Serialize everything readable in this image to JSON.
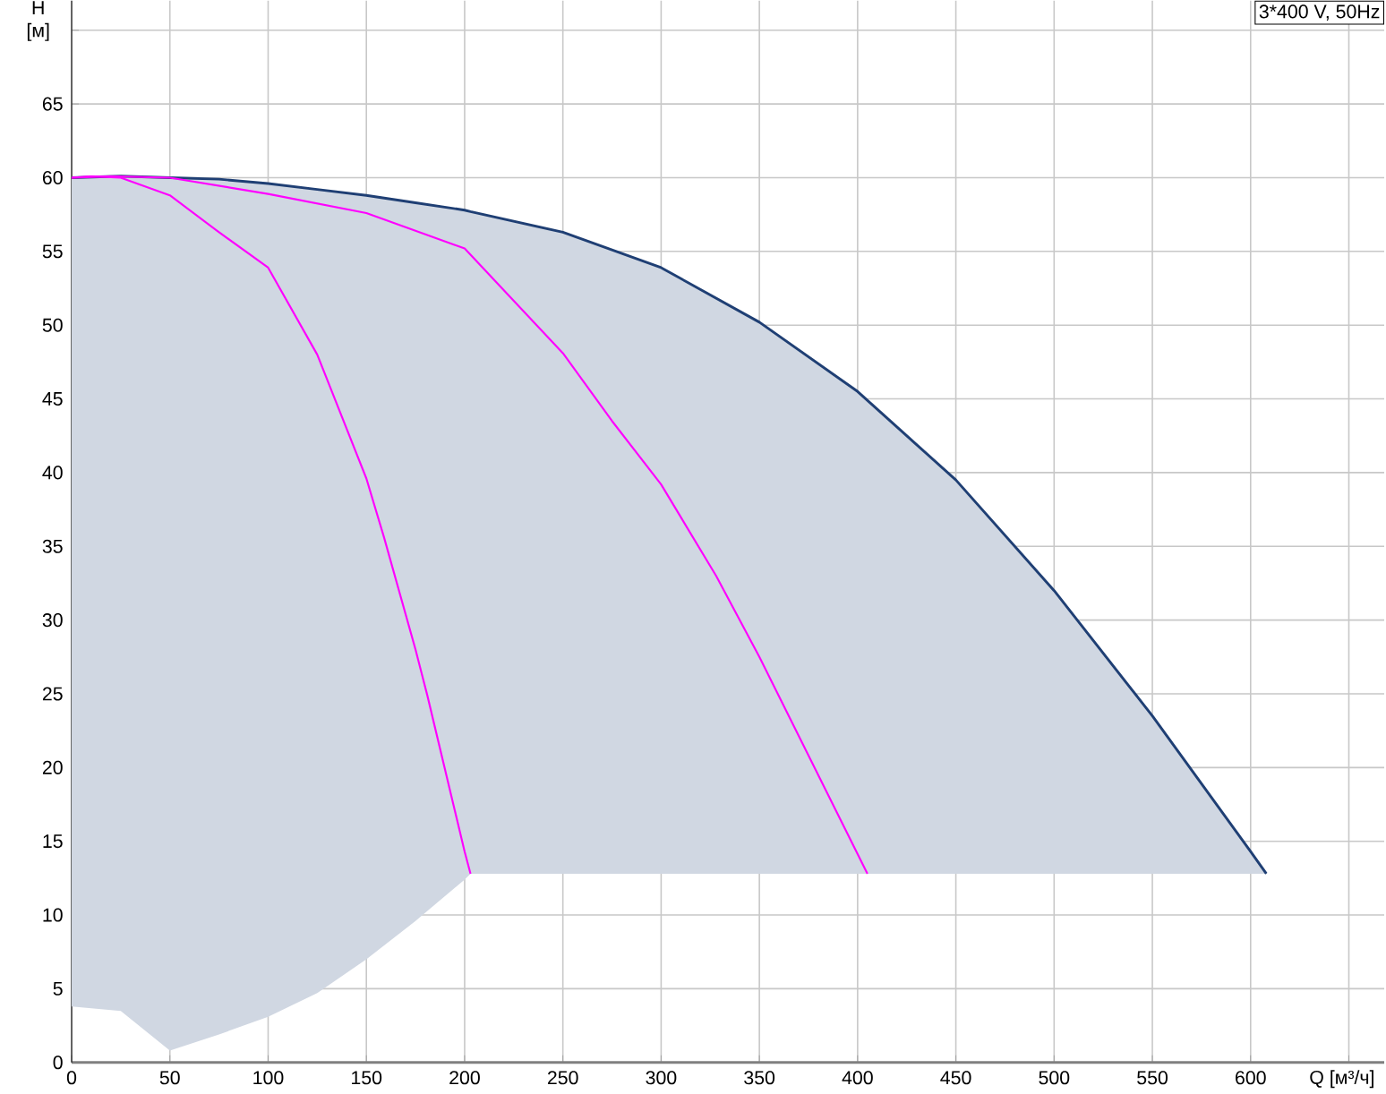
{
  "chart_data": {
    "type": "line",
    "xlabel": "Q [м³/ч]",
    "ylabel": "H [м]",
    "annotations": [
      "3*400 V, 50Hz"
    ],
    "xlim": [
      0,
      668
    ],
    "ylim": [
      0,
      72
    ],
    "xticks": [
      0,
      50,
      100,
      150,
      200,
      250,
      300,
      350,
      400,
      450,
      500,
      550,
      600,
      {
        "value": 650,
        "label": null
      }
    ],
    "yticks": [
      0,
      5,
      10,
      15,
      20,
      25,
      30,
      35,
      40,
      45,
      50,
      55,
      60,
      65,
      {
        "value": 70,
        "label": null
      }
    ],
    "grid": true,
    "marker": "none",
    "line_style": "solid",
    "series": [
      {
        "color": "#1f3f74",
        "x": [
          0,
          25,
          50,
          75,
          100,
          125,
          150,
          175,
          200,
          203,
          250,
          300,
          350,
          400,
          450,
          500,
          550,
          600,
          608
        ],
        "values": [
          60,
          60.1,
          60,
          59.9,
          59.6,
          59.2,
          58.8,
          58.3,
          57.8,
          57.7,
          56.3,
          53.9,
          50.2,
          45.5,
          39.5,
          32,
          23.5,
          14.3,
          12.8
        ],
        "lower": [
          3.8,
          3.5,
          0.8,
          1.9,
          3.1,
          4.7,
          7.0,
          9.6,
          12.4,
          12.8,
          12.8,
          12.8,
          12.8,
          12.8,
          12.8,
          12.8,
          12.8,
          12.8,
          12.8
        ],
        "upper": [
          60,
          60.1,
          60,
          59.9,
          59.6,
          59.2,
          58.8,
          58.3,
          57.8,
          57.7,
          56.3,
          53.9,
          50.2,
          45.5,
          39.5,
          32,
          23.5,
          14.3,
          12.8
        ]
      },
      {
        "color": "#ff00ff",
        "x": [
          0,
          20,
          50,
          100,
          150,
          200,
          250,
          275,
          300,
          328,
          350,
          405
        ],
        "values": [
          60,
          60.1,
          60,
          58.9,
          57.6,
          55.2,
          48.1,
          43.5,
          39.2,
          33,
          27.5,
          12.8
        ]
      },
      {
        "color": "#ff00ff",
        "x": [
          0,
          10,
          25,
          50,
          75,
          100,
          125,
          150,
          159,
          175,
          181,
          200,
          203
        ],
        "values": [
          60,
          60.1,
          60,
          58.8,
          56.3,
          53.9,
          48,
          39.6,
          35.6,
          28,
          24.9,
          14.3,
          12.8
        ]
      }
    ]
  }
}
